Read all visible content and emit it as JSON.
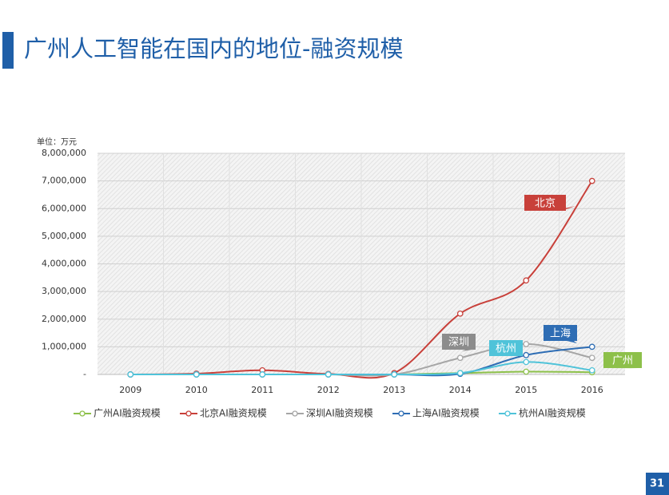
{
  "slide_title": "广州人工智能在国内的地位-融资规模",
  "page_number": "31",
  "chart_data": {
    "type": "line",
    "unit_label": "单位：万元",
    "categories": [
      "2009",
      "2010",
      "2011",
      "2012",
      "2013",
      "2014",
      "2015",
      "2016"
    ],
    "series": [
      {
        "name": "广州AI融资规模",
        "color": "#8dc04a",
        "values": [
          0,
          0,
          0,
          0,
          0,
          50000,
          100000,
          80000
        ]
      },
      {
        "name": "北京AI融资规模",
        "color": "#c8403a",
        "values": [
          0,
          30000,
          150000,
          20000,
          50000,
          2200000,
          3400000,
          7000000
        ]
      },
      {
        "name": "深圳AI融资规模",
        "color": "#a6a6a6",
        "values": [
          0,
          0,
          0,
          0,
          0,
          600000,
          1100000,
          600000
        ]
      },
      {
        "name": "上海AI融资规模",
        "color": "#2e6db4",
        "values": [
          0,
          0,
          0,
          0,
          0,
          20000,
          700000,
          1000000
        ]
      },
      {
        "name": "杭州AI融资规模",
        "color": "#4fc3d9",
        "values": [
          0,
          0,
          0,
          0,
          0,
          50000,
          450000,
          150000
        ]
      }
    ],
    "ylim": [
      0,
      8000000
    ],
    "yticks": [
      {
        "value": 0,
        "label": "-"
      },
      {
        "value": 1000000,
        "label": "1,000,000"
      },
      {
        "value": 2000000,
        "label": "2,000,000"
      },
      {
        "value": 3000000,
        "label": "3,000,000"
      },
      {
        "value": 4000000,
        "label": "4,000,000"
      },
      {
        "value": 5000000,
        "label": "5,000,000"
      },
      {
        "value": 6000000,
        "label": "6,000,000"
      },
      {
        "value": 7000000,
        "label": "7,000,000"
      },
      {
        "value": 8000000,
        "label": "8,000,000"
      }
    ],
    "grid": true,
    "legend": "bottom",
    "annotations": [
      {
        "text": "北京",
        "color": "#c8403a"
      },
      {
        "text": "深圳",
        "color": "#8c8c8c"
      },
      {
        "text": "杭州",
        "color": "#4fc3d9"
      },
      {
        "text": "上海",
        "color": "#2e6db4"
      },
      {
        "text": "广州",
        "color": "#8dc04a"
      }
    ]
  }
}
